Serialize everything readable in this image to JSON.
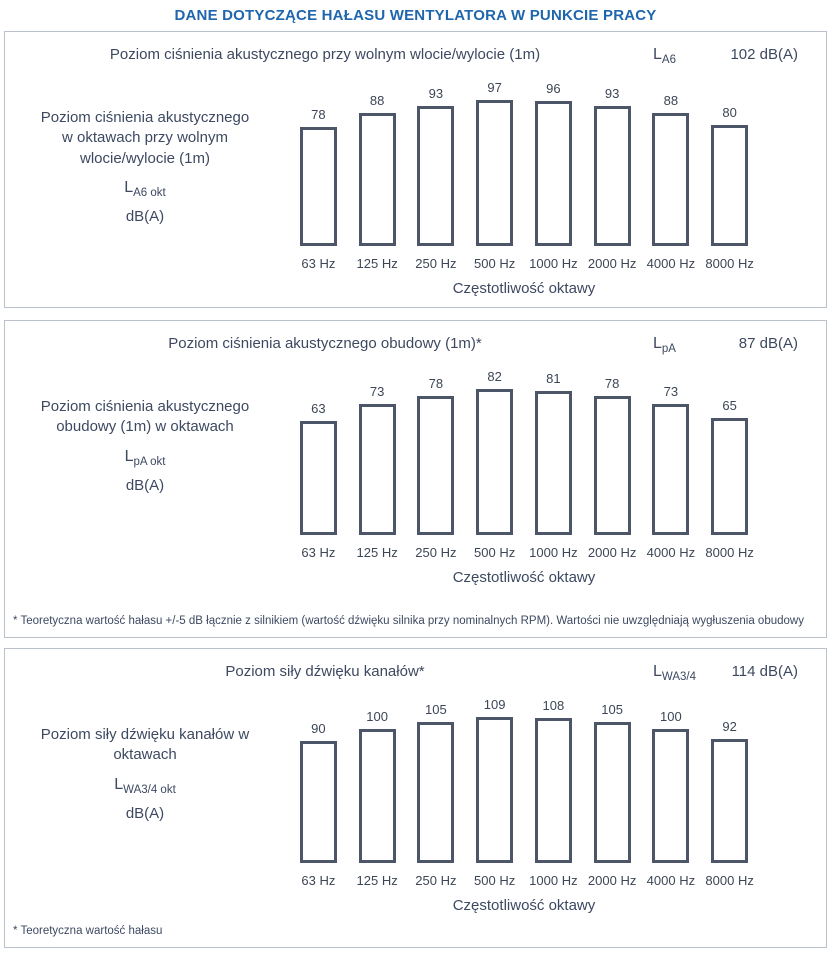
{
  "page_title": "DANE DOTYCZĄCE HAŁASU WENTYLATORA W PUNKCIE PRACY",
  "colors": {
    "accent_blue": "#2066ad",
    "bar_border": "#4c5668",
    "text": "#3d4961",
    "panel_border": "#bac1cb"
  },
  "chart_data": [
    {
      "type": "bar",
      "title": "Poziom ciśnienia akustycznego przy wolnym wlocie/wylocie (1m)",
      "symbol_base": "L",
      "symbol_sub": "A6",
      "total_value": "102 dB(A)",
      "categories": [
        "63 Hz",
        "125 Hz",
        "250 Hz",
        "500 Hz",
        "1000 Hz",
        "2000 Hz",
        "4000 Hz",
        "8000 Hz"
      ],
      "values": [
        78,
        88,
        93,
        97,
        96,
        93,
        88,
        80
      ],
      "xlabel": "Częstotliwość oktawy",
      "ylabel_lines": [
        "Poziom ciśnienia akustycznego",
        "w oktawach przy wolnym",
        "wlocie/wylocie (1m)"
      ],
      "side_symbol_base": "L",
      "side_symbol_sub": "A6 okt",
      "unit": "dB(A)",
      "ylim": [
        0,
        100
      ],
      "grid": false,
      "legend": false,
      "footnote": null
    },
    {
      "type": "bar",
      "title": "Poziom ciśnienia akustycznego obudowy (1m)*",
      "symbol_base": "L",
      "symbol_sub": "pA",
      "total_value": "87 dB(A)",
      "categories": [
        "63 Hz",
        "125 Hz",
        "250 Hz",
        "500 Hz",
        "1000 Hz",
        "2000 Hz",
        "4000 Hz",
        "8000 Hz"
      ],
      "values": [
        63,
        73,
        78,
        82,
        81,
        78,
        73,
        65
      ],
      "xlabel": "Częstotliwość oktawy",
      "ylabel_lines": [
        "Poziom ciśnienia akustycznego",
        "obudowy (1m) w oktawach"
      ],
      "side_symbol_base": "L",
      "side_symbol_sub": "pA okt",
      "unit": "dB(A)",
      "ylim": [
        0,
        85
      ],
      "grid": false,
      "legend": false,
      "footnote": "* Teoretyczna wartość hałasu +/-5 dB łącznie z silnikiem (wartość dźwięku silnika przy nominalnych RPM). Wartości nie uwzględniają wygłuszenia obudowy"
    },
    {
      "type": "bar",
      "title": "Poziom siły dźwięku kanałów*",
      "symbol_base": "L",
      "symbol_sub": "WA3/4",
      "total_value": "114 dB(A)",
      "categories": [
        "63 Hz",
        "125 Hz",
        "250 Hz",
        "500 Hz",
        "1000 Hz",
        "2000 Hz",
        "4000 Hz",
        "8000 Hz"
      ],
      "values": [
        90,
        100,
        105,
        109,
        108,
        105,
        100,
        92
      ],
      "xlabel": "Częstotliwość oktawy",
      "ylabel_lines": [
        "Poziom siły dźwięku kanałów w",
        "oktawach"
      ],
      "side_symbol_base": "L",
      "side_symbol_sub": "WA3/4 okt",
      "unit": "dB(A)",
      "ylim": [
        0,
        110
      ],
      "grid": false,
      "legend": false,
      "footnote": "* Teoretyczna wartość hałasu"
    }
  ]
}
